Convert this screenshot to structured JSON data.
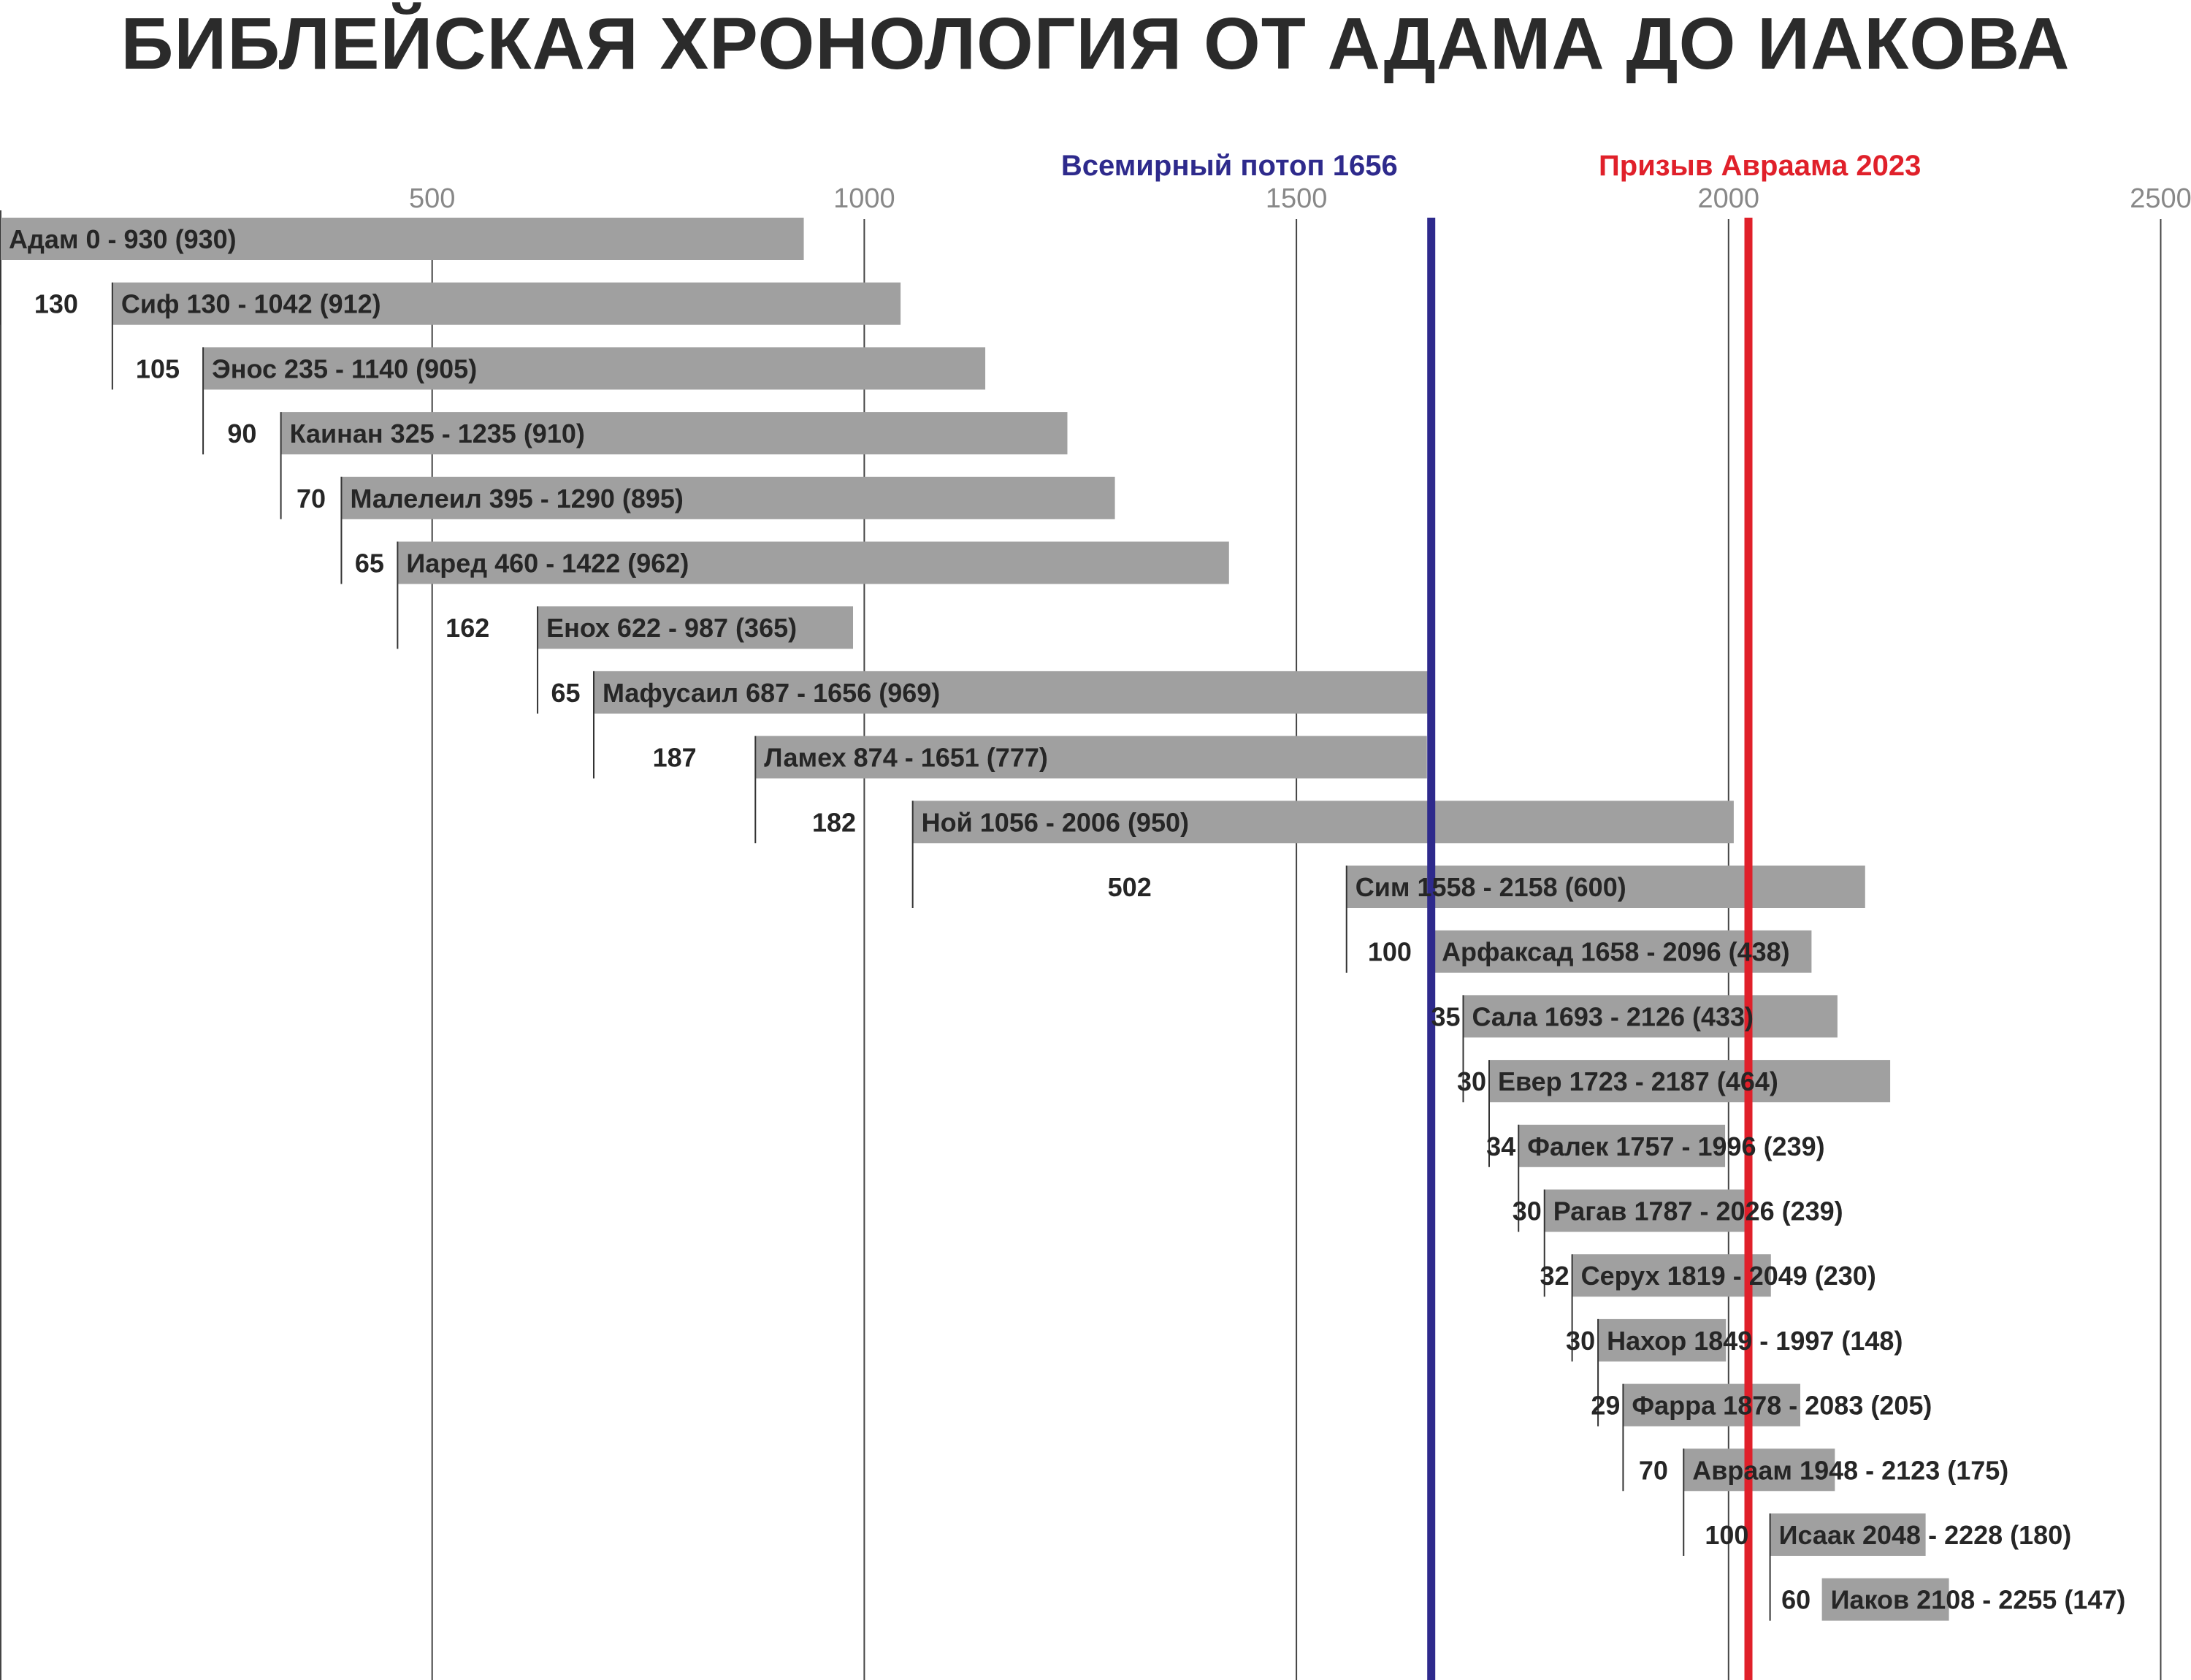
{
  "chart_data": {
    "type": "bar",
    "title": "БИБЛЕЙСКАЯ ХРОНОЛОГИЯ ОТ АДАМА ДО ИАКОВА",
    "xlim": [
      0,
      2530
    ],
    "x_ticks": [
      500,
      1000,
      1500,
      2000,
      2500
    ],
    "grid": "vertical",
    "colors": {
      "bar": "#a0a0a0",
      "flood": "#2e2a8c",
      "calling": "#e0202a",
      "text": "#262626",
      "grid": "#444444"
    },
    "markers": [
      {
        "label": "Всемирный потоп 1656",
        "x": 1656,
        "color": "#2e2a8c"
      },
      {
        "label": "Призыв Авраама 2023",
        "x": 2023,
        "color": "#e0202a"
      }
    ],
    "bars": [
      {
        "label": "Адам 0 - 930 (930)",
        "start": 0,
        "end": 930,
        "gap": ""
      },
      {
        "label": "Сиф 130 - 1042 (912)",
        "start": 130,
        "end": 1042,
        "gap": "130"
      },
      {
        "label": "Энос 235 - 1140 (905)",
        "start": 235,
        "end": 1140,
        "gap": "105"
      },
      {
        "label": "Каинан 325 - 1235 (910)",
        "start": 325,
        "end": 1235,
        "gap": "90"
      },
      {
        "label": "Малелеил 395 - 1290 (895)",
        "start": 395,
        "end": 1290,
        "gap": "70"
      },
      {
        "label": "Иаред 460 - 1422 (962)",
        "start": 460,
        "end": 1422,
        "gap": "65"
      },
      {
        "label": "Енох 622 - 987 (365)",
        "start": 622,
        "end": 987,
        "gap": "162"
      },
      {
        "label": "Мафусаил 687 - 1656 (969)",
        "start": 687,
        "end": 1656,
        "gap": "65"
      },
      {
        "label": "Ламех 874 - 1651 (777)",
        "start": 874,
        "end": 1651,
        "gap": "187"
      },
      {
        "label": "Ной 1056 - 2006 (950)",
        "start": 1056,
        "end": 2006,
        "gap": "182"
      },
      {
        "label": "Сим 1558 - 2158 (600)",
        "start": 1558,
        "end": 2158,
        "gap": "502"
      },
      {
        "label": "Арфаксад 1658 - 2096 (438)",
        "start": 1658,
        "end": 2096,
        "gap": "100"
      },
      {
        "label": "Сала 1693 - 2126 (433)",
        "start": 1693,
        "end": 2126,
        "gap": "35"
      },
      {
        "label": "Евер 1723 - 2187 (464)",
        "start": 1723,
        "end": 2187,
        "gap": "30"
      },
      {
        "label": "Фалек 1757 - 1996 (239)",
        "start": 1757,
        "end": 1996,
        "gap": "34"
      },
      {
        "label": "Рагав 1787 - 2026 (239)",
        "start": 1787,
        "end": 2026,
        "gap": "30"
      },
      {
        "label": "Серух 1819 - 2049 (230)",
        "start": 1819,
        "end": 2049,
        "gap": "32"
      },
      {
        "label": "Нахор 1849 - 1997 (148)",
        "start": 1849,
        "end": 1997,
        "gap": "30"
      },
      {
        "label": "Фарра 1878 - 2083 (205)",
        "start": 1878,
        "end": 2083,
        "gap": "29"
      },
      {
        "label": "Авраам 1948 - 2123 (175)",
        "start": 1948,
        "end": 2123,
        "gap": "70"
      },
      {
        "label": "Исаак 2048 - 2228 (180)",
        "start": 2048,
        "end": 2228,
        "gap": "100"
      },
      {
        "label": "Иаков 2108 - 2255 (147)",
        "start": 2108,
        "end": 2255,
        "gap": "60"
      }
    ]
  }
}
